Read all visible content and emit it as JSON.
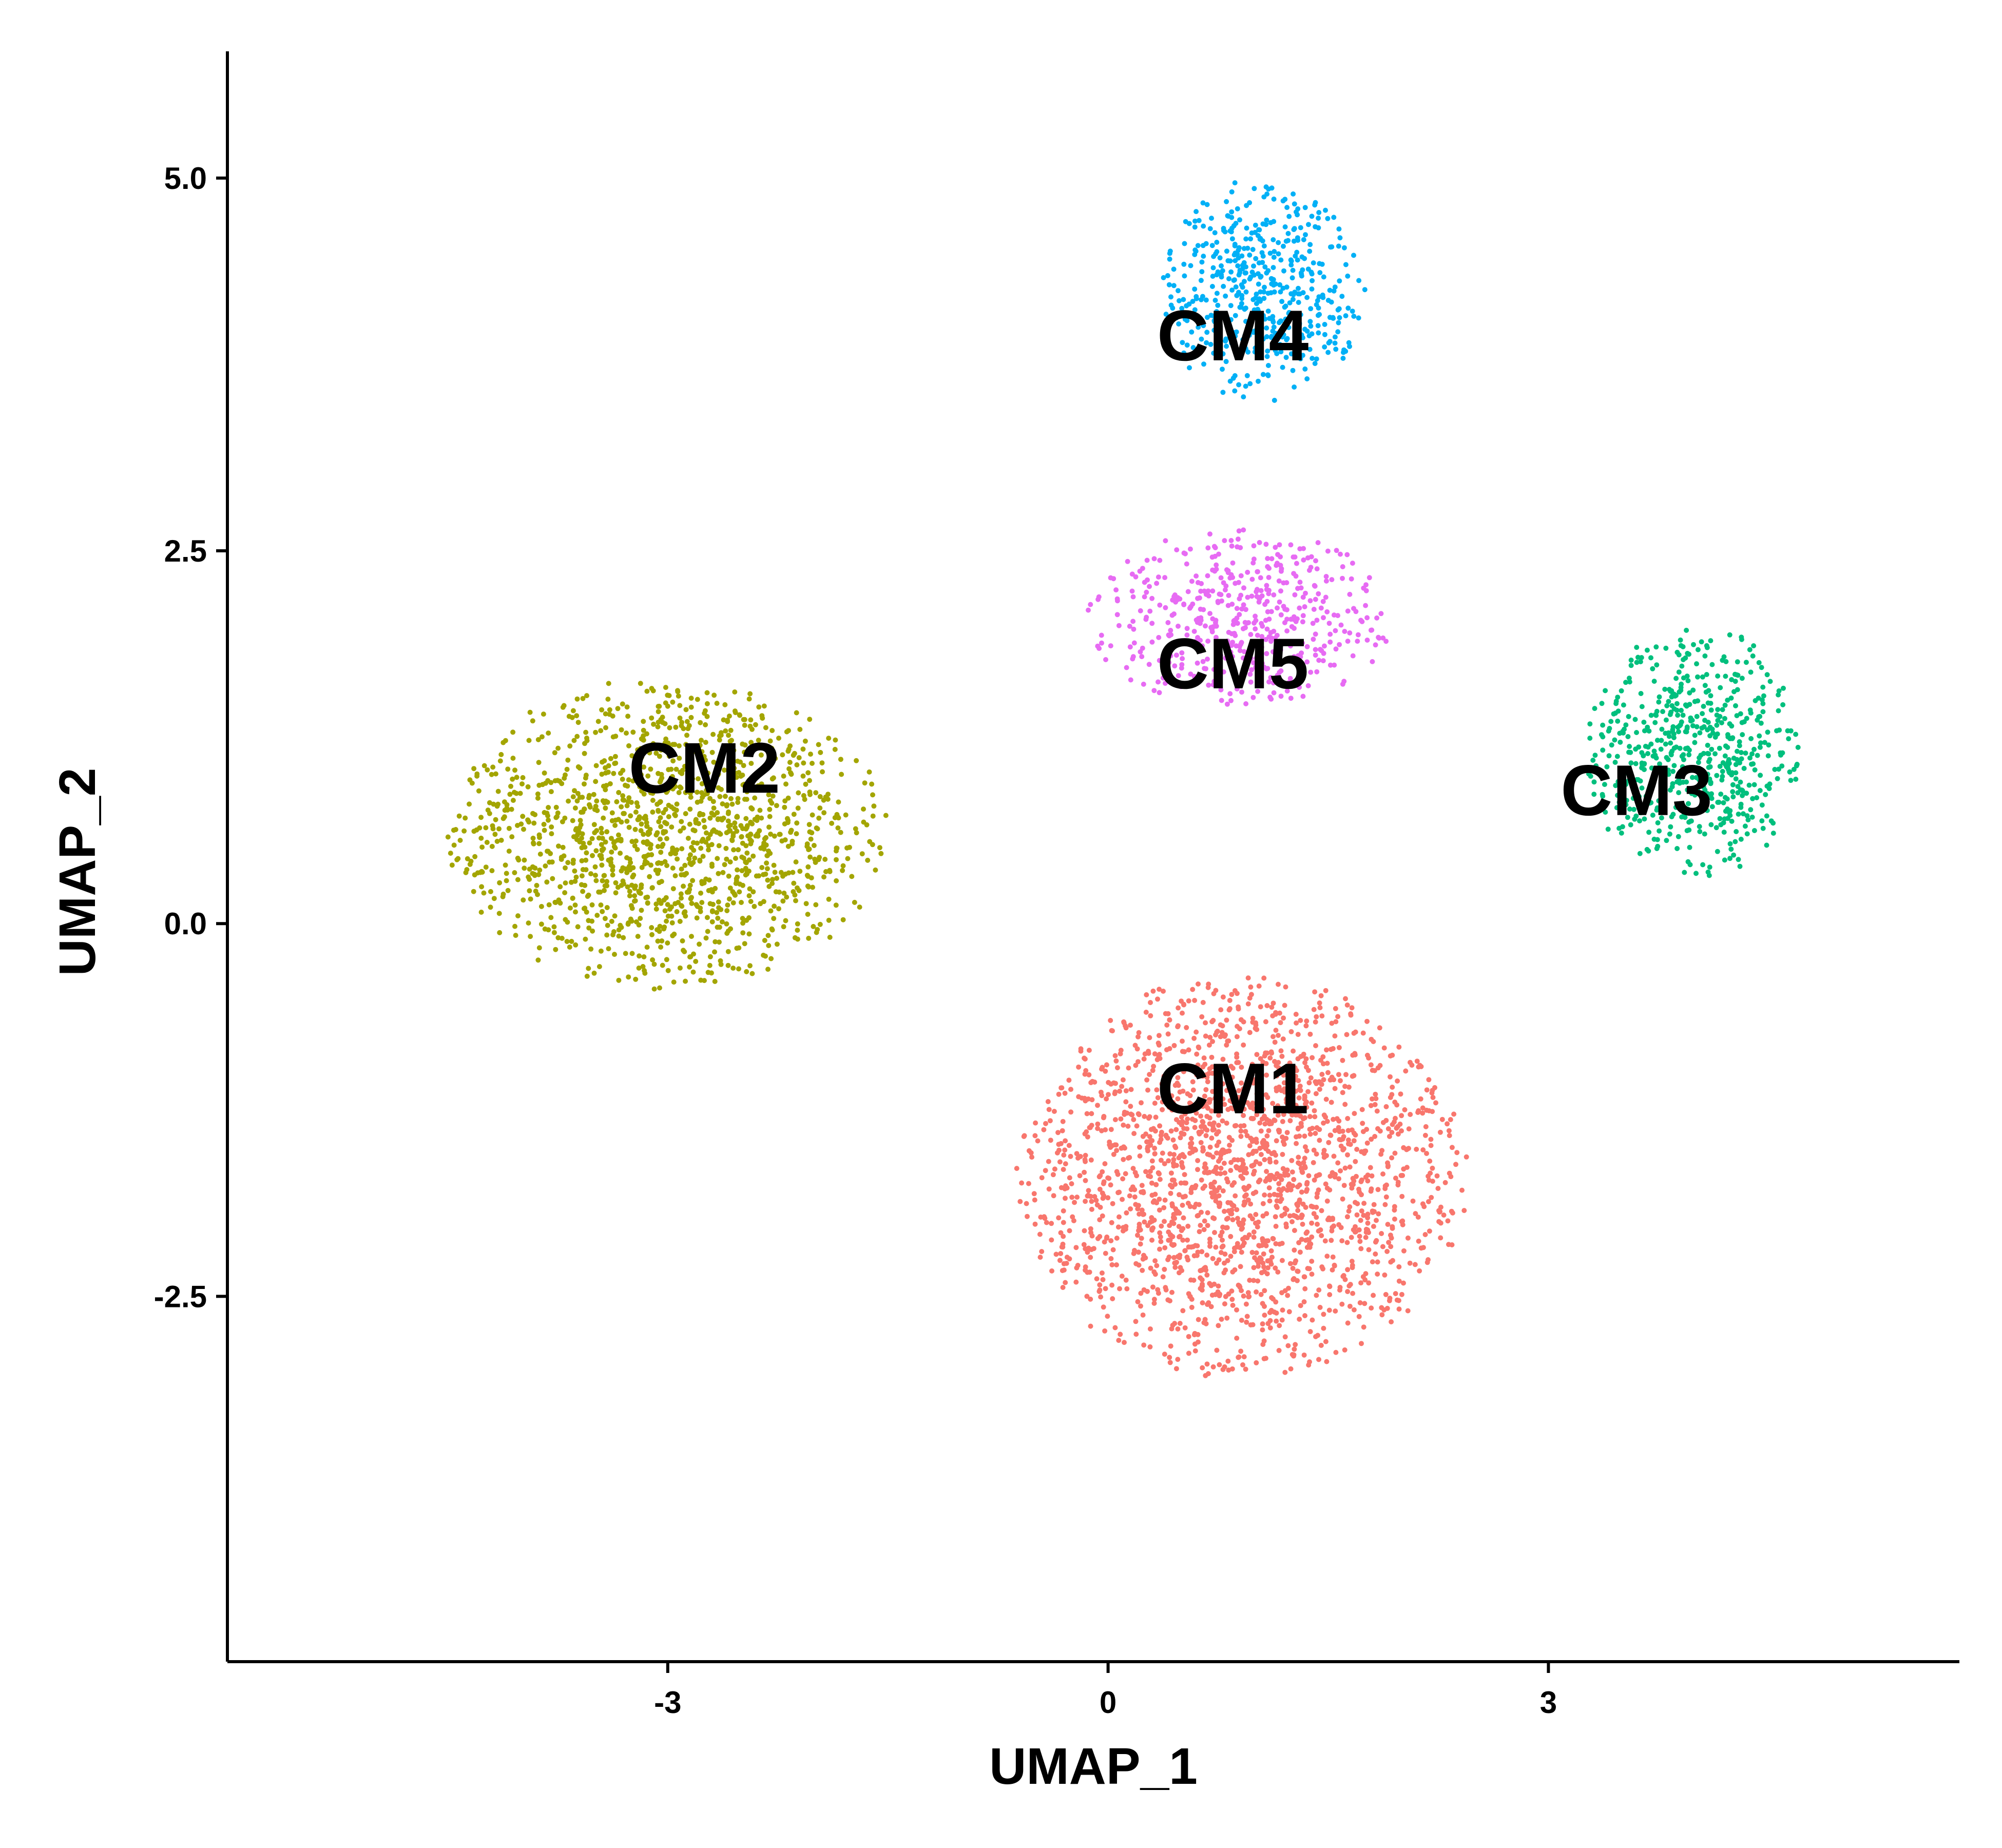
{
  "chart_data": {
    "type": "scatter",
    "title": "",
    "xlabel": "UMAP_1",
    "ylabel": "UMAP_2",
    "xlim": [
      -6.0,
      5.8
    ],
    "ylim": [
      -4.95,
      5.85
    ],
    "x_ticks": [
      {
        "value": -3,
        "label": "-3"
      },
      {
        "value": 0,
        "label": "0"
      },
      {
        "value": 3,
        "label": "3"
      }
    ],
    "y_ticks": [
      {
        "value": 5.0,
        "label": "5.0"
      },
      {
        "value": 2.5,
        "label": "2.5"
      },
      {
        "value": 0.0,
        "label": "0.0"
      },
      {
        "value": -2.5,
        "label": "-2.5"
      }
    ],
    "grid": false,
    "legend": "none",
    "series": [
      {
        "name": "CM1",
        "color": "#F8766D",
        "label_x": 0.85,
        "label_y": -1.1,
        "center": [
          0.9,
          -1.7
        ],
        "spread": [
          1.55,
          1.35
        ],
        "count": 2000
      },
      {
        "name": "CM2",
        "color": "#A3A500",
        "label_x": -2.75,
        "label_y": 1.05,
        "center": [
          -3.0,
          0.6
        ],
        "spread": [
          1.5,
          1.05
        ],
        "count": 1400
      },
      {
        "name": "CM3",
        "color": "#00BF7D",
        "label_x": 3.6,
        "label_y": 0.9,
        "center": [
          4.0,
          1.15
        ],
        "spread": [
          0.75,
          0.85
        ],
        "count": 600
      },
      {
        "name": "CM4",
        "color": "#00B0F6",
        "label_x": 0.85,
        "label_y": 3.95,
        "center": [
          1.05,
          4.25
        ],
        "spread": [
          0.7,
          0.75
        ],
        "count": 500
      },
      {
        "name": "CM5",
        "color": "#E76BF3",
        "label_x": 0.85,
        "label_y": 1.75,
        "center": [
          0.9,
          2.05
        ],
        "spread": [
          1.05,
          0.6
        ],
        "count": 500
      }
    ]
  }
}
